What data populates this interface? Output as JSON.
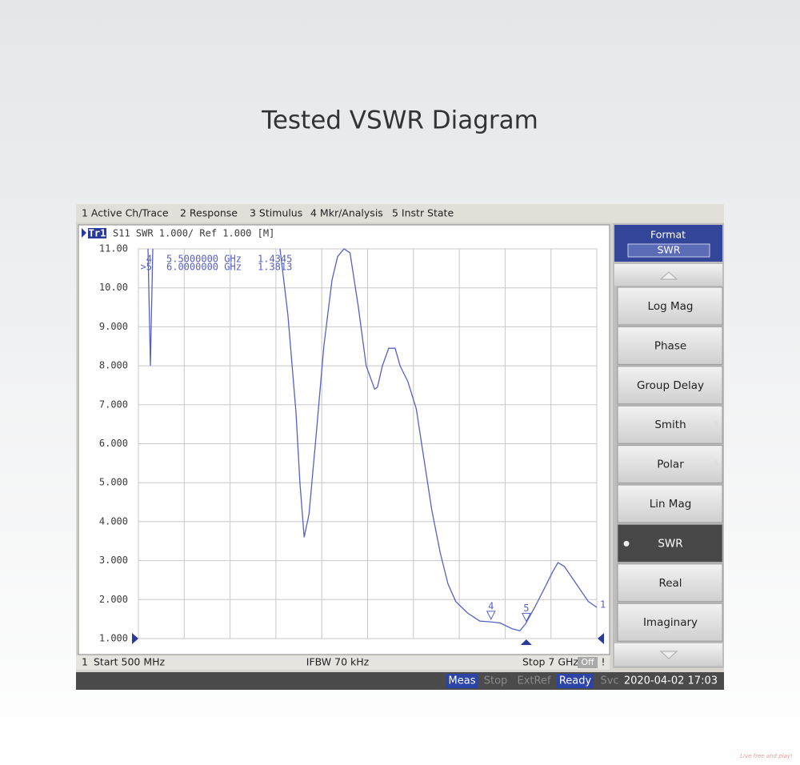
{
  "header": {
    "title": "Tested VSWR Diagram"
  },
  "menu": [
    "1 Active Ch/Trace",
    "2 Response",
    "3 Stimulus",
    "4 Mkr/Analysis",
    "5 Instr State"
  ],
  "chart_data": {
    "type": "line",
    "title": "S11 SWR 1.000/ Ref 1.000 [M]",
    "trace_end_label": "1",
    "series": [
      {
        "name": "Tr1",
        "color": "#5560c8",
        "x": [
          0.636,
          0.67,
          0.704,
          1.6,
          2.508,
          2.62,
          2.735,
          2.79,
          2.85,
          2.92,
          3.02,
          3.13,
          3.245,
          3.325,
          3.415,
          3.5,
          3.62,
          3.73,
          3.85,
          3.89,
          3.96,
          4.05,
          4.14,
          4.21,
          4.32,
          4.44,
          4.55,
          4.66,
          4.78,
          4.89,
          5.0,
          5.17,
          5.34,
          5.49,
          5.63,
          5.8,
          5.91,
          5.99,
          6.12,
          6.26,
          6.37,
          6.45,
          6.54,
          6.71,
          6.88,
          7.0
        ],
        "values": [
          11,
          8.0,
          11,
          null,
          11,
          9.3,
          6.8,
          5.0,
          3.6,
          4.2,
          6.2,
          8.5,
          10.2,
          10.8,
          11.0,
          10.9,
          9.5,
          8.0,
          7.4,
          7.45,
          8.0,
          8.45,
          8.45,
          8.0,
          7.6,
          6.9,
          5.6,
          4.3,
          3.2,
          2.4,
          1.95,
          1.65,
          1.45,
          1.43,
          1.4,
          1.25,
          1.2,
          1.38,
          1.8,
          2.3,
          2.7,
          2.95,
          2.85,
          2.4,
          1.95,
          1.8
        ]
      }
    ],
    "xlim": [
      0.5,
      7
    ],
    "ylim": [
      1,
      11
    ],
    "xticks": [
      0.5,
      1.15,
      1.8,
      2.45,
      3.1,
      3.75,
      4.4,
      5.05,
      5.7,
      6.35,
      7.0
    ],
    "yticks": [
      {
        "value": 1,
        "label": "1.000"
      },
      {
        "value": 2,
        "label": "2.000"
      },
      {
        "value": 3,
        "label": "3.000"
      },
      {
        "value": 4,
        "label": "4.000"
      },
      {
        "value": 5,
        "label": "5.000"
      },
      {
        "value": 6,
        "label": "6.000"
      },
      {
        "value": 7,
        "label": "7.000"
      },
      {
        "value": 8,
        "label": "8.000"
      },
      {
        "value": 9,
        "label": "9.000"
      },
      {
        "value": 10,
        "label": "10.00"
      },
      {
        "value": 11,
        "label": "11.00"
      }
    ],
    "grid": true,
    "markers": [
      {
        "id": "4",
        "row_id": "4",
        "x": 5.5,
        "x_label": "5.5000000 GHz",
        "y": 1.4345
      },
      {
        "id": "5",
        "row_id": ">5",
        "x": 6.0,
        "x_label": "6.0000000 GHz",
        "y": 1.3813,
        "active": true
      }
    ]
  },
  "footer": {
    "channel": "1",
    "start": "Start 500 MHz",
    "ifbw": "IFBW 70 kHz",
    "stop": "Stop 7 GHz",
    "off": "Off",
    "warning": "!"
  },
  "status": {
    "items": [
      {
        "text": "Meas",
        "active": true
      },
      {
        "text": "Stop",
        "active": false
      },
      {
        "text": "ExtRef",
        "active": false
      },
      {
        "text": "Ready",
        "active": true
      },
      {
        "text": "Svc",
        "active": false
      }
    ],
    "datetime": "2020-04-02 17:03"
  },
  "softkeys": {
    "title": "Format",
    "current": "SWR",
    "selected": 6,
    "buttons": [
      {
        "label": "Log Mag"
      },
      {
        "label": "Phase"
      },
      {
        "label": "Group Delay"
      },
      {
        "label": "Smith",
        "submenu": true
      },
      {
        "label": "Polar",
        "submenu": true
      },
      {
        "label": "Lin Mag"
      },
      {
        "label": "SWR"
      },
      {
        "label": "Real"
      },
      {
        "label": "Imaginary"
      }
    ]
  },
  "watermark": "Live free and play!"
}
